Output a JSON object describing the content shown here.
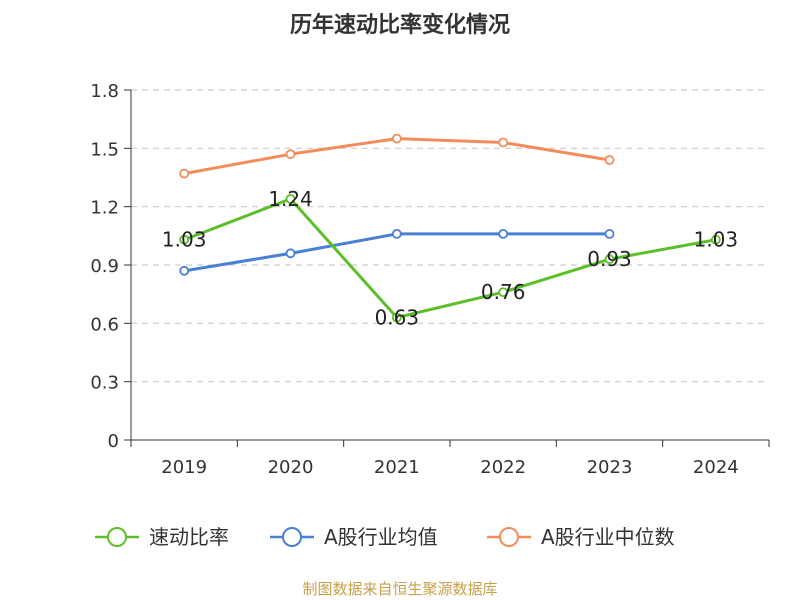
{
  "chart_data": {
    "type": "line",
    "title": "历年速动比率变化情况",
    "xlabel": "",
    "ylabel": "",
    "categories": [
      "2019",
      "2020",
      "2021",
      "2022",
      "2023",
      "2024"
    ],
    "ylim": [
      0,
      1.8
    ],
    "yticks": [
      "0",
      "0.3",
      "0.6",
      "0.9",
      "1.2",
      "1.5",
      "1.8"
    ],
    "grid": true,
    "legend_position": "bottom",
    "series": [
      {
        "name": "速动比率",
        "color": "#5cbf2a",
        "values": [
          1.03,
          1.24,
          0.63,
          0.76,
          0.93,
          1.03
        ],
        "labels": [
          "1.03",
          "1.24",
          "0.63",
          "0.76",
          "0.93",
          "1.03"
        ]
      },
      {
        "name": "A股行业均值",
        "color": "#4a7fd6",
        "values": [
          0.87,
          0.96,
          1.06,
          1.06,
          1.06,
          null
        ],
        "labels": []
      },
      {
        "name": "A股行业中位数",
        "color": "#f28c5a",
        "values": [
          1.37,
          1.47,
          1.55,
          1.53,
          1.44,
          null
        ],
        "labels": []
      }
    ],
    "source": "制图数据来自恒生聚源数据库"
  }
}
